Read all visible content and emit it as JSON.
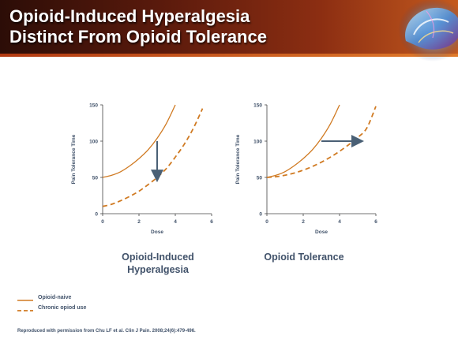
{
  "slide": {
    "title_line_1": "Opioid-Induced Hyperalgesia",
    "title_line_2": "Distinct From Opioid Tolerance"
  },
  "colors": {
    "series_line": "#d07a22",
    "arrow": "#4a6075",
    "axis": "#444444",
    "text": "#41526a"
  },
  "chart_data": [
    {
      "type": "line",
      "title": "Opioid-Induced Hyperalgesia",
      "caption_line_1": "Opioid-Induced",
      "caption_line_2": "Hyperalgesia",
      "xlabel": "Dose",
      "ylabel": "Pain Tolerance Time",
      "xlim": [
        0,
        6
      ],
      "ylim": [
        0,
        150
      ],
      "xticks": [
        0,
        2,
        4,
        6
      ],
      "yticks": [
        0,
        50,
        100,
        150
      ],
      "grid": false,
      "series": [
        {
          "name": "Opioid-naive",
          "style": "solid",
          "x": [
            0,
            0.5,
            1,
            1.5,
            2,
            2.5,
            3,
            3.5,
            4
          ],
          "y": [
            50,
            53,
            58,
            66,
            76,
            88,
            104,
            124,
            150
          ]
        },
        {
          "name": "Chronic opiod use",
          "style": "dashed",
          "x": [
            0,
            0.5,
            1,
            1.5,
            2,
            2.5,
            3,
            3.5,
            4,
            4.5,
            5,
            5.5
          ],
          "y": [
            10,
            13,
            18,
            24,
            31,
            40,
            50,
            62,
            78,
            96,
            118,
            145
          ]
        }
      ],
      "annotations": [
        {
          "type": "arrow",
          "direction": "down",
          "x": 3,
          "y_from": 100,
          "y_to": 52
        }
      ]
    },
    {
      "type": "line",
      "title": "Opioid Tolerance",
      "caption_line_1": "Opioid Tolerance",
      "caption_line_2": "",
      "xlabel": "Dose",
      "ylabel": "Pain Tolerance Time",
      "xlim": [
        0,
        6
      ],
      "ylim": [
        0,
        150
      ],
      "xticks": [
        0,
        2,
        4,
        6
      ],
      "yticks": [
        0,
        50,
        100,
        150
      ],
      "grid": false,
      "series": [
        {
          "name": "Opioid-naive",
          "style": "solid",
          "x": [
            0,
            0.5,
            1,
            1.5,
            2,
            2.5,
            3,
            3.5,
            4
          ],
          "y": [
            50,
            53,
            58,
            66,
            76,
            88,
            104,
            124,
            150
          ]
        },
        {
          "name": "Chronic opiod use",
          "style": "dashed",
          "x": [
            0,
            0.5,
            1,
            1.5,
            2,
            2.5,
            3,
            3.5,
            4,
            4.5,
            5,
            5.5,
            6
          ],
          "y": [
            50,
            51,
            53,
            56,
            60,
            65,
            71,
            78,
            86,
            95,
            105,
            118,
            148
          ]
        }
      ],
      "annotations": [
        {
          "type": "arrow",
          "direction": "right",
          "y": 100,
          "x_from": 3,
          "x_to": 5
        }
      ]
    }
  ],
  "legend": {
    "placement": "bottom-left",
    "items": [
      {
        "label": "Opioid-naive",
        "style": "solid"
      },
      {
        "label": "Chronic opiod use",
        "style": "dashed"
      }
    ]
  },
  "citation": "Reproduced with permission from Chu LF et al. Clin J Pain. 2008;24(6):479-496."
}
